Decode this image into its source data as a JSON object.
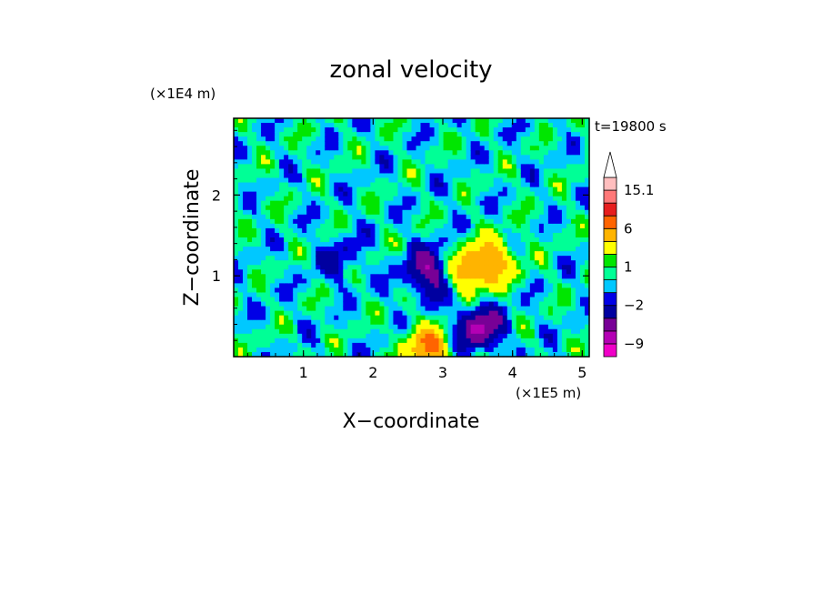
{
  "chart_data": {
    "type": "heatmap",
    "title": "zonal velocity",
    "xlabel": "X−coordinate",
    "ylabel": "Z−coordinate",
    "x_unit": "(×1E5 m)",
    "y_unit": "(×1E4 m)",
    "time_label": "t=19800 s",
    "xlim": [
      0,
      5.1
    ],
    "ylim": [
      0,
      2.95
    ],
    "xticks": [
      1,
      2,
      3,
      4,
      5
    ],
    "yticks": [
      1,
      2
    ],
    "xtick_labels": [
      "1",
      "2",
      "3",
      "4",
      "5"
    ],
    "ytick_labels": [
      "1",
      "2"
    ],
    "colorbar": {
      "levels": [
        -12,
        -9,
        -6,
        -4,
        -2,
        -1,
        0,
        1,
        2,
        4,
        6,
        8,
        11,
        15.1
      ],
      "labels": [
        {
          "value": 15.1,
          "text": "15.1"
        },
        {
          "value": 6,
          "text": "6"
        },
        {
          "value": 1,
          "text": "1"
        },
        {
          "value": -2,
          "text": "−2"
        },
        {
          "value": -9,
          "text": "−9"
        }
      ],
      "colors": [
        "#f000c8",
        "#b400b4",
        "#780096",
        "#0000a0",
        "#0000e6",
        "#00c8ff",
        "#00ff96",
        "#00e600",
        "#ffff00",
        "#ffb400",
        "#ff6400",
        "#e61e1e",
        "#ff7878",
        "#ffbebe"
      ],
      "extend_top_color": "#ffffff"
    },
    "features": [
      {
        "x": 2.85,
        "z": 1.05,
        "value": -6
      },
      {
        "x": 3.35,
        "z": 1.05,
        "value": 6
      },
      {
        "x": 3.75,
        "z": 1.2,
        "value": 4
      },
      {
        "x": 3.5,
        "z": 0.35,
        "value": -6
      },
      {
        "x": 1.5,
        "z": 1.2,
        "value": -2
      },
      {
        "x": 2.8,
        "z": 0.1,
        "value": 6
      }
    ]
  }
}
